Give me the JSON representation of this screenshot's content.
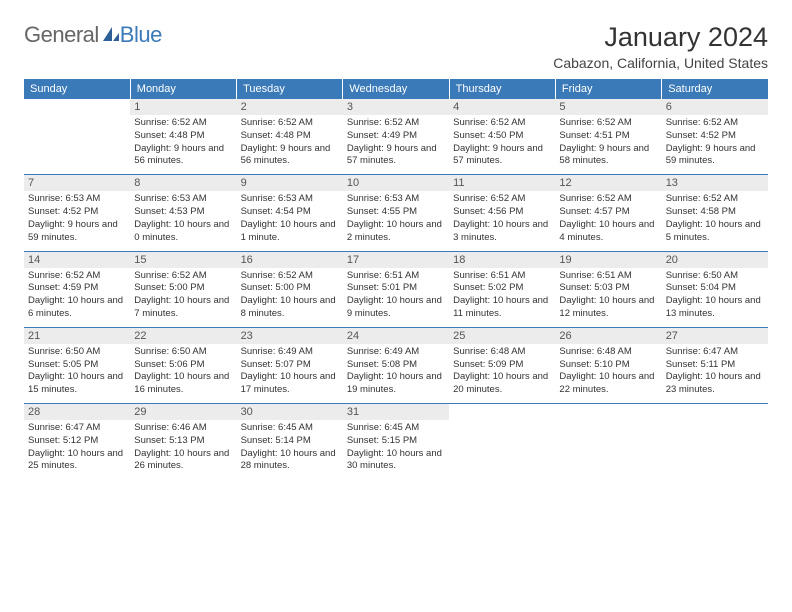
{
  "logo": {
    "text1": "General",
    "text2": "Blue"
  },
  "title": "January 2024",
  "location": "Cabazon, California, United States",
  "headerColor": "#3a7ab8",
  "dayHeaders": [
    "Sunday",
    "Monday",
    "Tuesday",
    "Wednesday",
    "Thursday",
    "Friday",
    "Saturday"
  ],
  "weeks": [
    [
      null,
      {
        "n": "1",
        "sr": "6:52 AM",
        "ss": "4:48 PM",
        "dl": "9 hours and 56 minutes."
      },
      {
        "n": "2",
        "sr": "6:52 AM",
        "ss": "4:48 PM",
        "dl": "9 hours and 56 minutes."
      },
      {
        "n": "3",
        "sr": "6:52 AM",
        "ss": "4:49 PM",
        "dl": "9 hours and 57 minutes."
      },
      {
        "n": "4",
        "sr": "6:52 AM",
        "ss": "4:50 PM",
        "dl": "9 hours and 57 minutes."
      },
      {
        "n": "5",
        "sr": "6:52 AM",
        "ss": "4:51 PM",
        "dl": "9 hours and 58 minutes."
      },
      {
        "n": "6",
        "sr": "6:52 AM",
        "ss": "4:52 PM",
        "dl": "9 hours and 59 minutes."
      }
    ],
    [
      {
        "n": "7",
        "sr": "6:53 AM",
        "ss": "4:52 PM",
        "dl": "9 hours and 59 minutes."
      },
      {
        "n": "8",
        "sr": "6:53 AM",
        "ss": "4:53 PM",
        "dl": "10 hours and 0 minutes."
      },
      {
        "n": "9",
        "sr": "6:53 AM",
        "ss": "4:54 PM",
        "dl": "10 hours and 1 minute."
      },
      {
        "n": "10",
        "sr": "6:53 AM",
        "ss": "4:55 PM",
        "dl": "10 hours and 2 minutes."
      },
      {
        "n": "11",
        "sr": "6:52 AM",
        "ss": "4:56 PM",
        "dl": "10 hours and 3 minutes."
      },
      {
        "n": "12",
        "sr": "6:52 AM",
        "ss": "4:57 PM",
        "dl": "10 hours and 4 minutes."
      },
      {
        "n": "13",
        "sr": "6:52 AM",
        "ss": "4:58 PM",
        "dl": "10 hours and 5 minutes."
      }
    ],
    [
      {
        "n": "14",
        "sr": "6:52 AM",
        "ss": "4:59 PM",
        "dl": "10 hours and 6 minutes."
      },
      {
        "n": "15",
        "sr": "6:52 AM",
        "ss": "5:00 PM",
        "dl": "10 hours and 7 minutes."
      },
      {
        "n": "16",
        "sr": "6:52 AM",
        "ss": "5:00 PM",
        "dl": "10 hours and 8 minutes."
      },
      {
        "n": "17",
        "sr": "6:51 AM",
        "ss": "5:01 PM",
        "dl": "10 hours and 9 minutes."
      },
      {
        "n": "18",
        "sr": "6:51 AM",
        "ss": "5:02 PM",
        "dl": "10 hours and 11 minutes."
      },
      {
        "n": "19",
        "sr": "6:51 AM",
        "ss": "5:03 PM",
        "dl": "10 hours and 12 minutes."
      },
      {
        "n": "20",
        "sr": "6:50 AM",
        "ss": "5:04 PM",
        "dl": "10 hours and 13 minutes."
      }
    ],
    [
      {
        "n": "21",
        "sr": "6:50 AM",
        "ss": "5:05 PM",
        "dl": "10 hours and 15 minutes."
      },
      {
        "n": "22",
        "sr": "6:50 AM",
        "ss": "5:06 PM",
        "dl": "10 hours and 16 minutes."
      },
      {
        "n": "23",
        "sr": "6:49 AM",
        "ss": "5:07 PM",
        "dl": "10 hours and 17 minutes."
      },
      {
        "n": "24",
        "sr": "6:49 AM",
        "ss": "5:08 PM",
        "dl": "10 hours and 19 minutes."
      },
      {
        "n": "25",
        "sr": "6:48 AM",
        "ss": "5:09 PM",
        "dl": "10 hours and 20 minutes."
      },
      {
        "n": "26",
        "sr": "6:48 AM",
        "ss": "5:10 PM",
        "dl": "10 hours and 22 minutes."
      },
      {
        "n": "27",
        "sr": "6:47 AM",
        "ss": "5:11 PM",
        "dl": "10 hours and 23 minutes."
      }
    ],
    [
      {
        "n": "28",
        "sr": "6:47 AM",
        "ss": "5:12 PM",
        "dl": "10 hours and 25 minutes."
      },
      {
        "n": "29",
        "sr": "6:46 AM",
        "ss": "5:13 PM",
        "dl": "10 hours and 26 minutes."
      },
      {
        "n": "30",
        "sr": "6:45 AM",
        "ss": "5:14 PM",
        "dl": "10 hours and 28 minutes."
      },
      {
        "n": "31",
        "sr": "6:45 AM",
        "ss": "5:15 PM",
        "dl": "10 hours and 30 minutes."
      },
      null,
      null,
      null
    ]
  ],
  "labels": {
    "sunrise": "Sunrise:",
    "sunset": "Sunset:",
    "daylight": "Daylight:"
  }
}
